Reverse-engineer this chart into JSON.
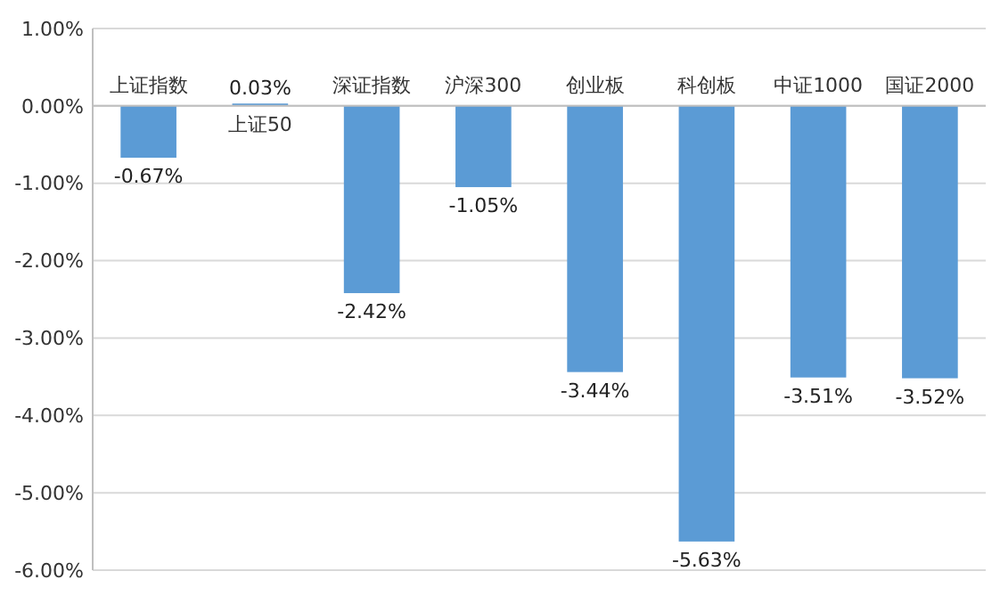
{
  "chart_data": {
    "type": "bar",
    "categories": [
      "上证指数",
      "上证50",
      "深证指数",
      "沪深300",
      "创业板",
      "科创板",
      "中证1000",
      "国证2000"
    ],
    "values": [
      -0.67,
      0.03,
      -2.42,
      -1.05,
      -3.44,
      -5.63,
      -3.51,
      -3.52
    ],
    "value_labels": [
      "-0.67%",
      "0.03%",
      "-2.42%",
      "-1.05%",
      "-3.44%",
      "-5.63%",
      "-3.51%",
      "-3.52%"
    ],
    "color": "#5b9bd5",
    "ylim": [
      -6,
      1
    ],
    "yticks": [
      {
        "value": 1,
        "label": "1.00%"
      },
      {
        "value": 0,
        "label": "0.00%"
      },
      {
        "value": -1,
        "label": "-1.00%"
      },
      {
        "value": -2,
        "label": "-2.00%"
      },
      {
        "value": -3,
        "label": "-3.00%"
      },
      {
        "value": -4,
        "label": "-4.00%"
      },
      {
        "value": -5,
        "label": "-5.00%"
      },
      {
        "value": -6,
        "label": "-6.00%"
      }
    ],
    "grid": "y"
  }
}
